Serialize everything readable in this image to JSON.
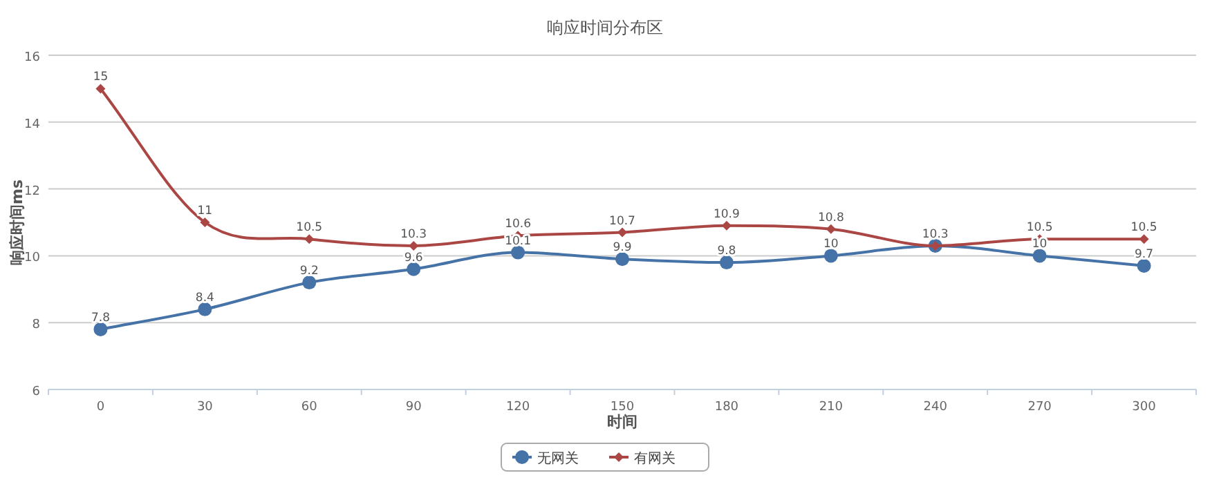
{
  "chart_data": {
    "type": "line",
    "title": "响应时间分布区",
    "xlabel": "时间",
    "ylabel": "响应时间ms",
    "categories": [
      "0",
      "30",
      "60",
      "90",
      "120",
      "150",
      "180",
      "210",
      "240",
      "270",
      "300"
    ],
    "series": [
      {
        "name": "无网关",
        "color": "#4572a7",
        "marker": "circle",
        "values": [
          7.8,
          8.4,
          9.2,
          9.6,
          10.1,
          9.9,
          9.8,
          10,
          10.3,
          10,
          9.7
        ],
        "value_labels": [
          "7.8",
          "8.4",
          "9.2",
          "9.6",
          "10.1",
          "9.9",
          "9.8",
          "10",
          null,
          "10",
          "9.7"
        ]
      },
      {
        "name": "有网关",
        "color": "#aa4643",
        "marker": "diamond",
        "values": [
          15,
          11,
          10.5,
          10.3,
          10.6,
          10.7,
          10.9,
          10.8,
          10.3,
          10.5,
          10.5
        ],
        "value_labels": [
          "15",
          "11",
          "10.5",
          "10.3",
          "10.6",
          "10.7",
          "10.9",
          "10.8",
          "10.3",
          "10.5",
          "10.5"
        ]
      }
    ],
    "ylim": [
      6,
      16
    ],
    "yticks": [
      6,
      8,
      10,
      12,
      14,
      16
    ],
    "grid": "y",
    "legend": "bottom",
    "line_style": "solid"
  }
}
